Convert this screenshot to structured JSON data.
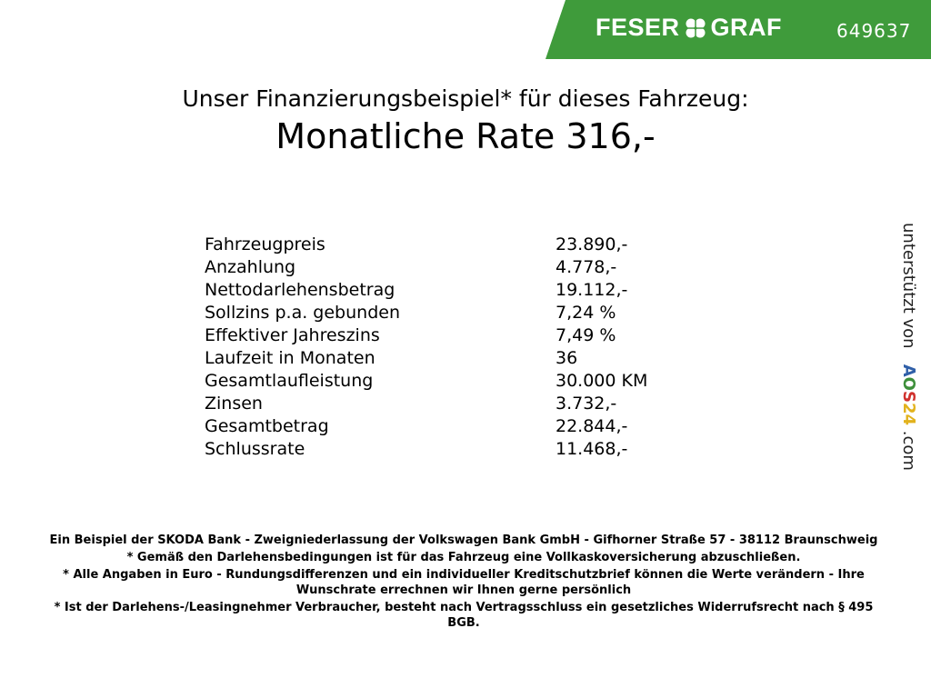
{
  "header": {
    "brand_left": "FESER",
    "brand_right": "GRAF",
    "vehicle_code": "649637",
    "brand_color": "#3f9b3b"
  },
  "offer": {
    "title": "Unser Finanzierungsbeispiel* für dieses Fahrzeug:",
    "monthly_rate": "Monatliche Rate 316,-"
  },
  "details": [
    {
      "label": "Fahrzeugpreis",
      "value": "23.890,-"
    },
    {
      "label": "Anzahlung",
      "value": "4.778,-"
    },
    {
      "label": "Nettodarlehensbetrag",
      "value": "19.112,-"
    },
    {
      "label": "Sollzins p.a. gebunden",
      "value": "7,24 %"
    },
    {
      "label": "Effektiver Jahreszins",
      "value": "7,49 %"
    },
    {
      "label": "Laufzeit in Monaten",
      "value": "36"
    },
    {
      "label": "Gesamtlaufleistung",
      "value": "30.000 KM"
    },
    {
      "label": "Zinsen",
      "value": "3.732,-"
    },
    {
      "label": "Gesamtbetrag",
      "value": "22.844,-"
    },
    {
      "label": "Schlussrate",
      "value": "11.468,-"
    }
  ],
  "sidebar": {
    "supported_by": "unterstützt von",
    "logo_a": "A",
    "logo_o": "O",
    "logo_s": "S",
    "logo_n": "24",
    "logo_suffix": ".com"
  },
  "footer": [
    "Ein Beispiel der SKODA Bank - Zweigniederlassung der Volkswagen Bank GmbH - Gifhorner Straße 57 - 38112 Braunschweig",
    "* Gemäß den Darlehensbedingungen ist für das Fahrzeug eine Vollkaskoversicherung abzuschließen.",
    "* Alle Angaben in Euro - Rundungsdifferenzen und ein individueller Kreditschutzbrief können die Werte verändern - Ihre Wunschrate errechnen wir Ihnen gerne persönlich",
    "* Ist der Darlehens-/Leasingnehmer Verbraucher, besteht nach Vertragsschluss ein gesetzliches Widerrufsrecht nach § 495 BGB."
  ]
}
